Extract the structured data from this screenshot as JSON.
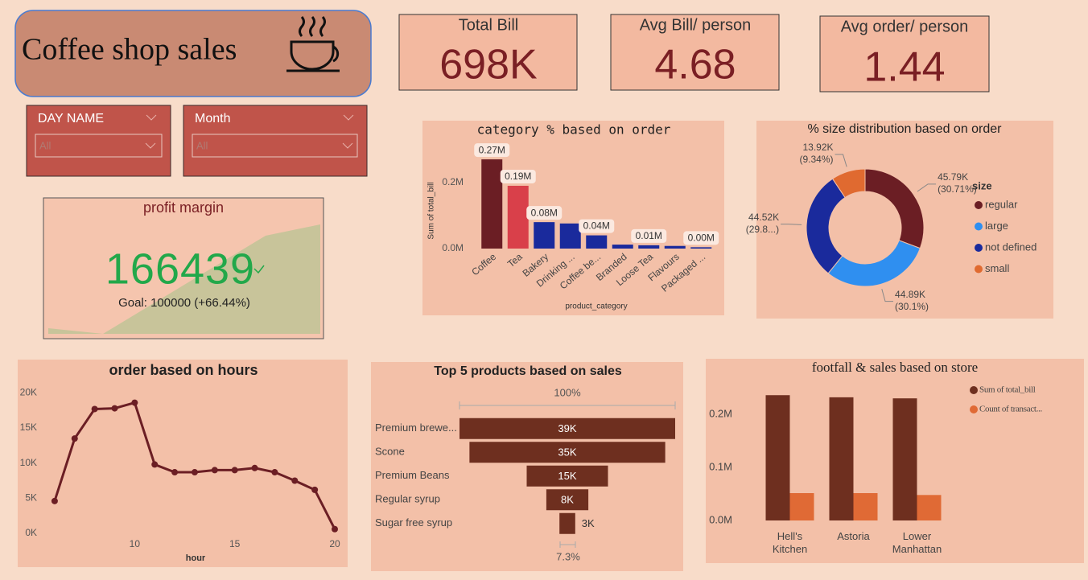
{
  "header": {
    "title": "Coffee shop sales"
  },
  "kpis": [
    {
      "label": "Total Bill",
      "value": "698K"
    },
    {
      "label": "Avg Bill/ person",
      "value": "4.68"
    },
    {
      "label": "Avg order/ person",
      "value": "1.44"
    }
  ],
  "filters": [
    {
      "label": "DAY NAME",
      "value": "All"
    },
    {
      "label": "Month",
      "value": "All"
    }
  ],
  "profit_margin": {
    "title": "profit margin",
    "value": "166439",
    "goal": "Goal: 100000 (+66.44%)"
  },
  "chart_data": [
    {
      "type": "bar",
      "title": "category % based on order",
      "xlabel": "product_category",
      "ylabel": "Sum of total_bill",
      "categories": [
        "Coffee",
        "Tea",
        "Bakery",
        "Drinking ...",
        "Coffee be...",
        "Branded",
        "Loose Tea",
        "Flavours",
        "Packaged ..."
      ],
      "values": [
        0.27,
        0.19,
        0.08,
        0.076,
        0.04,
        0.012,
        0.01,
        0.008,
        0.004
      ],
      "value_labels": [
        "0.27M",
        "0.19M",
        "0.08M",
        null,
        "0.04M",
        null,
        "0.01M",
        null,
        "0.00M"
      ],
      "colors": [
        "#6b1e24",
        "#d9404a",
        "#1a2a9c",
        "#1a2a9c",
        "#1a2a9c",
        "#1a2a9c",
        "#1a2a9c",
        "#1a2a9c",
        "#1a2a9c"
      ],
      "ylim": [
        0,
        0.28
      ],
      "yticks": [
        {
          "value": 0,
          "label": "0.0M"
        },
        {
          "value": 0.2,
          "label": "0.2M"
        }
      ]
    },
    {
      "type": "donut",
      "title": "% size distribution based on order",
      "legend_title": "size",
      "categories": [
        "regular",
        "large",
        "not defined",
        "small"
      ],
      "values": [
        45790,
        44890,
        44520,
        13920
      ],
      "value_labels": [
        "45.79K (30.71%)",
        "44.89K (30.1%)",
        "44.52K (29.8...)",
        "13.92K (9.34%)"
      ],
      "colors": [
        "#6b1e24",
        "#2f8ff0",
        "#1a2a9c",
        "#e06a30"
      ]
    },
    {
      "type": "line",
      "title": "order based on hours",
      "xlabel": "hour",
      "x": [
        6,
        7,
        8,
        9,
        10,
        11,
        12,
        13,
        14,
        15,
        16,
        17,
        18,
        19,
        20
      ],
      "values": [
        4600,
        13500,
        17700,
        17800,
        18600,
        9800,
        8700,
        8700,
        9000,
        9000,
        9300,
        8700,
        7500,
        6200,
        600
      ],
      "color": "#6b1e24",
      "xlim": [
        5.3,
        20
      ],
      "ylim": [
        0,
        20500
      ],
      "xticks": [
        10,
        15,
        20
      ],
      "yticks": [
        {
          "value": 0,
          "label": "0K"
        },
        {
          "value": 5000,
          "label": "5K"
        },
        {
          "value": 10000,
          "label": "10K"
        },
        {
          "value": 15000,
          "label": "15K"
        },
        {
          "value": 20000,
          "label": "20K"
        }
      ]
    },
    {
      "type": "funnel",
      "title": "Top 5 products based on sales",
      "categories": [
        "Premium brewe...",
        "Scone",
        "Premium Beans",
        "Regular syrup",
        "Sugar free syrup"
      ],
      "values": [
        39000,
        35400,
        14700,
        7600,
        2850
      ],
      "value_labels": [
        "39K",
        "35K",
        "15K",
        "8K",
        "3K"
      ],
      "top_label": "100%",
      "bottom_label": "7.3%",
      "color": "#6e2f1f"
    },
    {
      "type": "grouped_bar",
      "title": "footfall & sales based on store",
      "categories": [
        "Hell's Kitchen",
        "Astoria",
        "Lower Manhattan"
      ],
      "series": [
        {
          "name": "Sum of total_bill",
          "color": "#6e2f1f",
          "values": [
            0.236,
            0.232,
            0.23
          ]
        },
        {
          "name": "Count of transact...",
          "color": "#e06a35",
          "values": [
            0.0515,
            0.0515,
            0.048
          ]
        }
      ],
      "ylim": [
        0,
        0.25
      ],
      "yticks": [
        {
          "value": 0,
          "label": "0.0M"
        },
        {
          "value": 0.1,
          "label": "0.1M"
        },
        {
          "value": 0.2,
          "label": "0.2M"
        }
      ]
    }
  ]
}
